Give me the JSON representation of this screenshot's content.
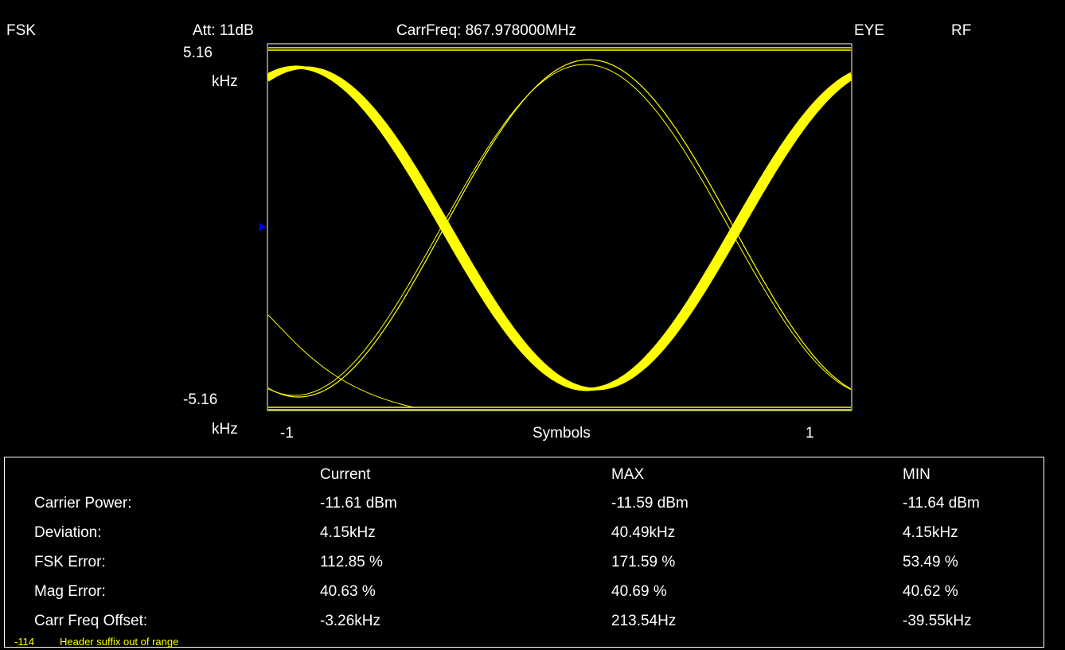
{
  "header": {
    "mode": "FSK",
    "attenuation": "Att: 11dB",
    "carrier_frequency": "CarrFreq: 867.978000MHz",
    "view": "EYE",
    "source": "RF"
  },
  "plot": {
    "y_top": "5.16",
    "y_top_unit": "kHz",
    "y_bottom": "-5.16",
    "y_bottom_unit": "kHz",
    "x_left": "-1",
    "x_label": "Symbols",
    "x_right": "1"
  },
  "table": {
    "header": [
      "Current",
      "MAX",
      "MIN"
    ],
    "rows": [
      [
        "Carrier Power:",
        "-11.61 dBm",
        "-11.59 dBm",
        "-11.64 dBm"
      ],
      [
        "Deviation:",
        "4.15kHz",
        "40.49kHz",
        "4.15kHz"
      ],
      [
        "FSK Error:",
        "112.85 %",
        "171.59 %",
        "53.49 %"
      ],
      [
        "Mag Error:",
        "40.63 %",
        "40.69 %",
        "40.62 %"
      ],
      [
        "Carr Freq Offset:",
        "-3.26kHz",
        "213.54Hz",
        "-39.55kHz"
      ]
    ]
  },
  "status": {
    "code": "-114",
    "message": "Header suffix out of range"
  }
}
